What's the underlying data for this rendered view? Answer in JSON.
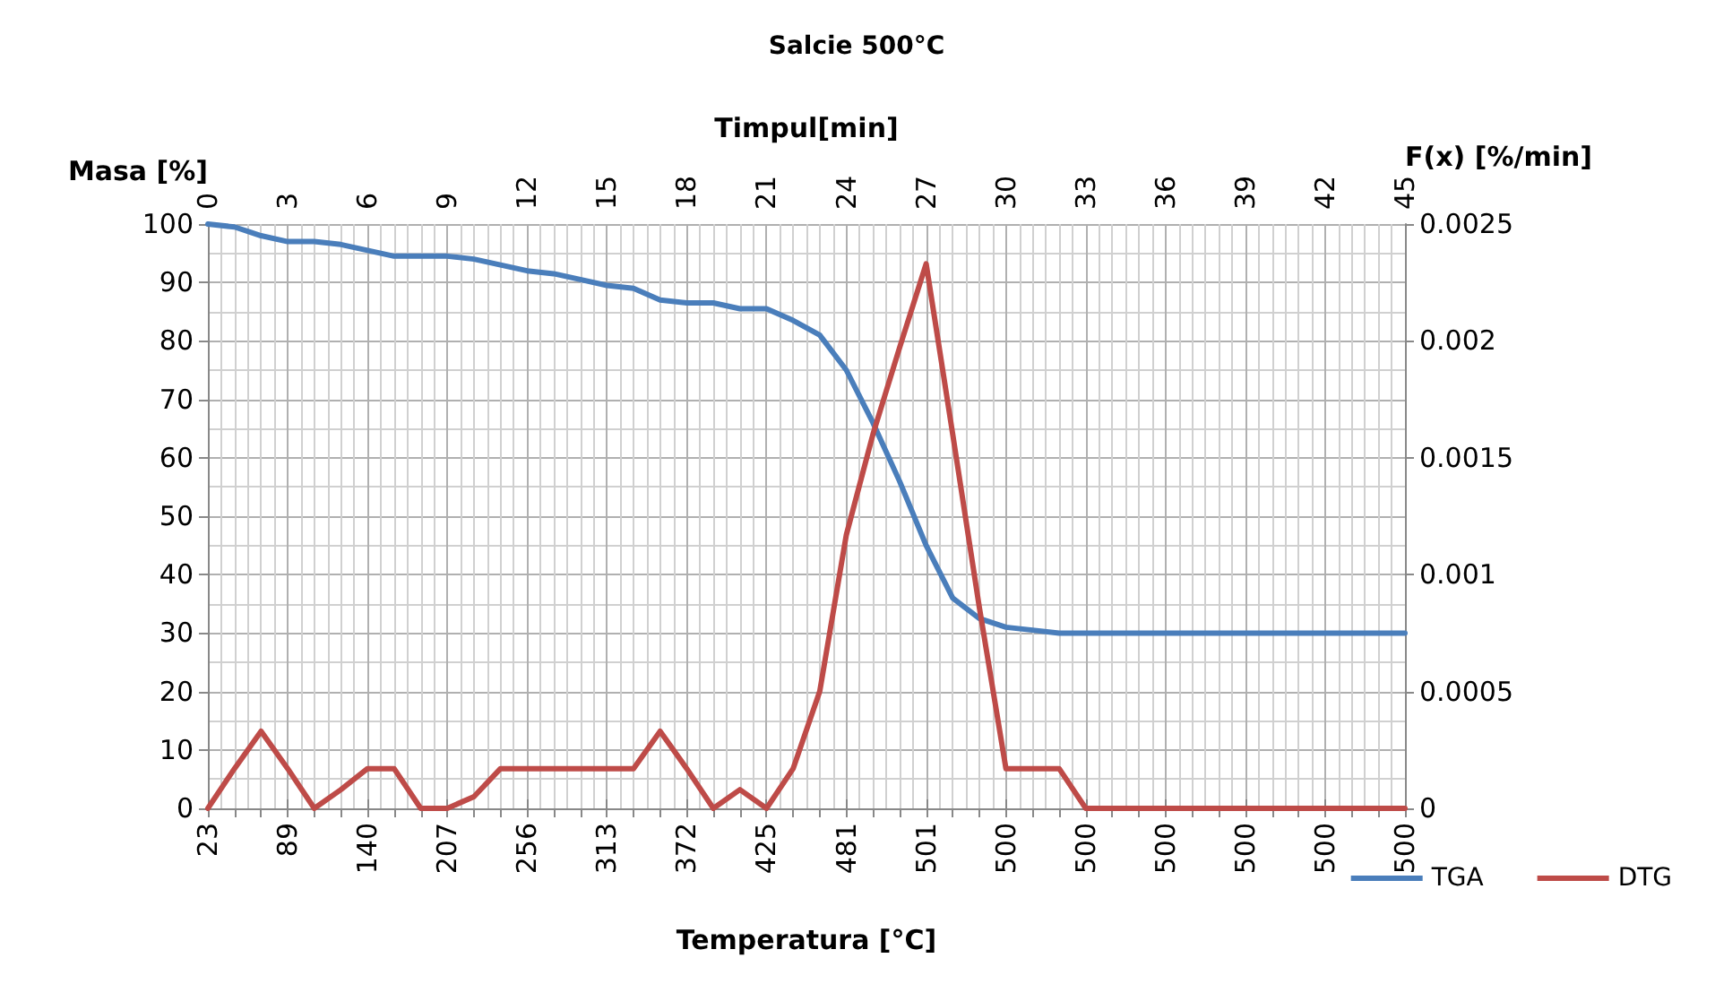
{
  "chart_data": {
    "type": "line",
    "title": "Salcie 500°C",
    "xlabel": "Temperatura [°C]",
    "x2label": "Timpul[min]",
    "ylabel": "Masa [%]",
    "y2label": "F(x) [%/min]",
    "categories": [
      "23",
      null,
      null,
      "89",
      null,
      null,
      "140",
      null,
      null,
      "207",
      null,
      null,
      "256",
      null,
      null,
      "313",
      null,
      null,
      "372",
      null,
      null,
      "425",
      null,
      null,
      "481",
      null,
      null,
      "501",
      null,
      null,
      "500",
      null,
      null,
      "500",
      null,
      null,
      "500",
      null,
      null,
      "500",
      null,
      null,
      "500",
      null,
      null,
      "500"
    ],
    "series": [
      {
        "name": "TGA",
        "color": "#4a7ebb",
        "values": [
          100,
          99.5,
          98,
          97,
          97,
          96.5,
          95.5,
          94.5,
          94.5,
          94.5,
          94,
          93,
          92,
          91.5,
          90.5,
          89.5,
          89,
          87,
          86.5,
          86.5,
          85.5,
          85.5,
          83.5,
          81,
          75,
          66,
          56,
          45,
          36,
          32.5,
          31,
          30.5,
          30,
          30,
          30,
          30,
          30,
          30,
          30,
          30,
          30,
          30,
          30,
          30,
          30,
          30
        ]
      },
      {
        "name": "DTG",
        "color": "#be4b48",
        "axis": "y2",
        "values": [
          0,
          0.00017,
          0.00033,
          0.00017,
          0,
          8e-05,
          0.00017,
          0.00017,
          0,
          0,
          5e-05,
          0.00017,
          0.00017,
          0.00017,
          0.00017,
          0.00017,
          0.00017,
          0.00033,
          0.00017,
          0,
          8e-05,
          0,
          0.00017,
          0.0005,
          0.00117,
          0.0016,
          0.00197,
          0.00233,
          0.0016,
          0.00086,
          0.00017,
          0.00017,
          0.00017,
          0,
          0,
          0,
          0,
          0,
          0,
          0,
          0,
          0,
          0,
          0,
          0,
          0
        ]
      }
    ],
    "ylim": [
      0,
      100
    ],
    "yticks": [
      0,
      10,
      20,
      30,
      40,
      50,
      60,
      70,
      80,
      90,
      100
    ],
    "y2lim": [
      0,
      0.0025
    ],
    "y2ticks": [
      0,
      0.0005,
      0.001,
      0.0015,
      0.002,
      0.0025
    ],
    "x2lim": [
      0,
      45
    ],
    "x2ticks": [
      0,
      3,
      6,
      9,
      12,
      15,
      18,
      21,
      24,
      27,
      30,
      33,
      36,
      39,
      42,
      45
    ],
    "grid": true,
    "legend": "right",
    "marker": "none",
    "line_style": "solid"
  }
}
